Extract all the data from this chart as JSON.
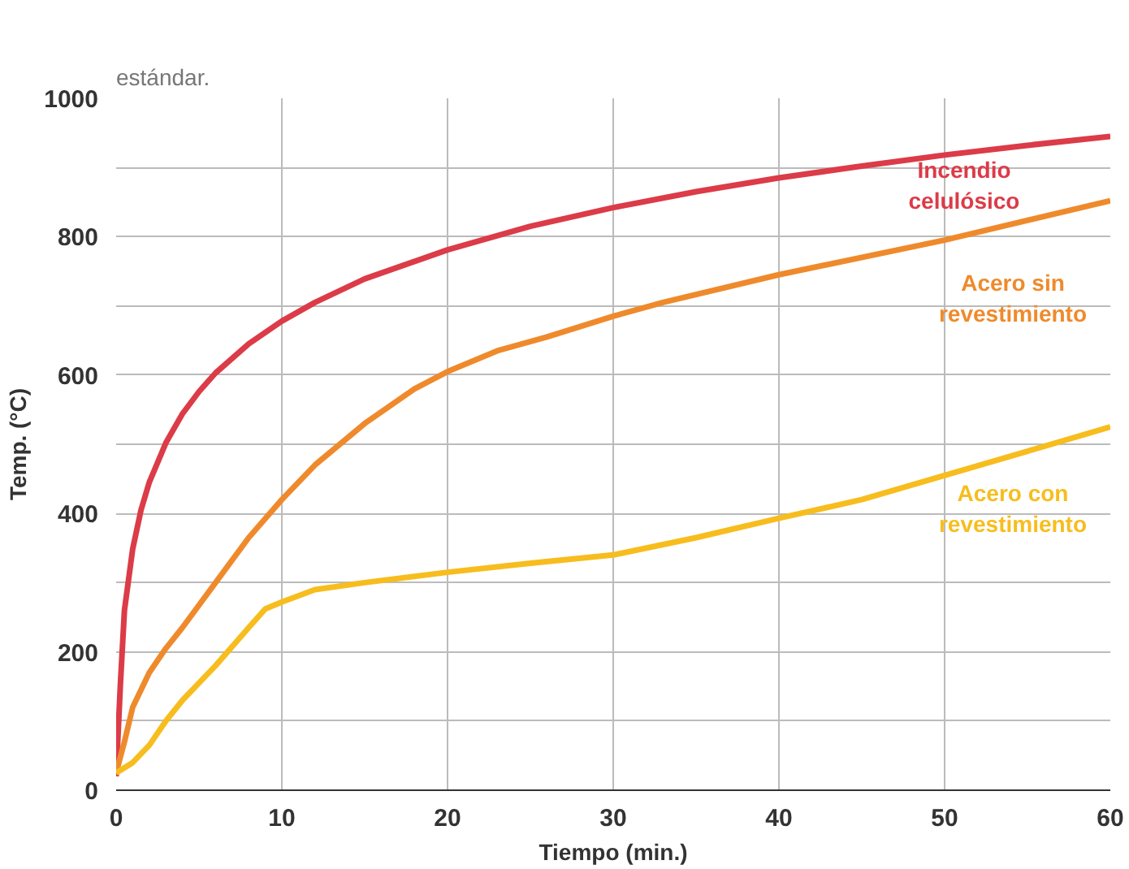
{
  "chart_data": {
    "type": "line",
    "xlabel": "Tiempo (min.)",
    "ylabel": "Temp. (°C)",
    "xlim": [
      0,
      60
    ],
    "ylim": [
      0,
      1000
    ],
    "xticks": [
      0,
      10,
      20,
      30,
      40,
      50,
      60
    ],
    "yticks": [
      0,
      {
        "value": 100,
        "label": null
      },
      200,
      {
        "value": 300,
        "label": null
      },
      400,
      {
        "value": 500,
        "label": null
      },
      600,
      {
        "value": 700,
        "label": null
      },
      800,
      {
        "value": 900,
        "label": null
      },
      1000
    ],
    "grid": true,
    "marker": "none",
    "line_style": "solid",
    "annotations": [
      "estándar."
    ],
    "series": [
      {
        "name": "Incendio celulósico",
        "color": "#dc3b48",
        "x": [
          0,
          0.25,
          0.5,
          1,
          1.5,
          2,
          3,
          4,
          5,
          6,
          8,
          10,
          12,
          15,
          20,
          25,
          30,
          35,
          40,
          45,
          50,
          55,
          60
        ],
        "values": [
          20,
          150,
          260,
          349,
          405,
          445,
          502,
          544,
          576,
          603,
          645,
          678,
          705,
          739,
          781,
          815,
          842,
          865,
          885,
          902,
          918,
          932,
          945
        ]
      },
      {
        "name": "Acero sin revestimiento",
        "color": "#ef8a2c",
        "x": [
          0,
          0.5,
          1,
          2,
          3,
          4,
          6,
          8,
          10,
          12,
          15,
          18,
          20,
          23,
          26,
          30,
          33,
          40,
          50,
          60
        ],
        "values": [
          25,
          70,
          120,
          170,
          205,
          235,
          300,
          365,
          420,
          470,
          530,
          580,
          605,
          635,
          655,
          685,
          705,
          745,
          795,
          852
        ]
      },
      {
        "name": "Acero con revestimiento",
        "color": "#f7bd1e",
        "x": [
          0,
          1,
          2,
          3,
          4,
          6,
          8,
          9,
          10,
          12,
          15,
          20,
          25,
          30,
          35,
          40,
          45,
          50,
          55,
          60
        ],
        "values": [
          25,
          40,
          65,
          100,
          130,
          180,
          235,
          262,
          272,
          290,
          300,
          315,
          328,
          340,
          365,
          393,
          420,
          455,
          490,
          525
        ]
      }
    ]
  }
}
